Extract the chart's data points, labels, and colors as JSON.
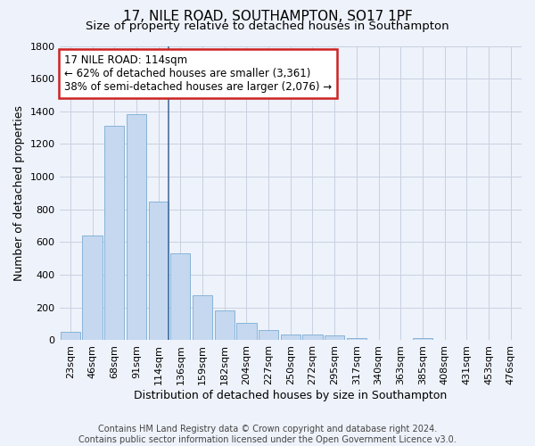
{
  "title_line1": "17, NILE ROAD, SOUTHAMPTON, SO17 1PF",
  "title_line2": "Size of property relative to detached houses in Southampton",
  "xlabel": "Distribution of detached houses by size in Southampton",
  "ylabel": "Number of detached properties",
  "footer_line1": "Contains HM Land Registry data © Crown copyright and database right 2024.",
  "footer_line2": "Contains public sector information licensed under the Open Government Licence v3.0.",
  "annotation_line1": "17 NILE ROAD: 114sqm",
  "annotation_line2": "← 62% of detached houses are smaller (3,361)",
  "annotation_line3": "38% of semi-detached houses are larger (2,076) →",
  "bar_categories": [
    "23sqm",
    "46sqm",
    "68sqm",
    "91sqm",
    "114sqm",
    "136sqm",
    "159sqm",
    "182sqm",
    "204sqm",
    "227sqm",
    "250sqm",
    "272sqm",
    "295sqm",
    "317sqm",
    "340sqm",
    "363sqm",
    "385sqm",
    "408sqm",
    "431sqm",
    "453sqm",
    "476sqm"
  ],
  "bar_values": [
    50,
    640,
    1310,
    1380,
    850,
    530,
    275,
    185,
    105,
    65,
    35,
    35,
    28,
    15,
    0,
    0,
    15,
    0,
    0,
    0,
    0
  ],
  "bar_color": "#c5d8f0",
  "bar_edge_color": "#7aadd4",
  "highlight_index": 4,
  "highlight_line_color": "#4a6fa0",
  "ylim": [
    0,
    1800
  ],
  "yticks": [
    0,
    200,
    400,
    600,
    800,
    1000,
    1200,
    1400,
    1600,
    1800
  ],
  "background_color": "#eef2fa",
  "grid_color": "#c8d0e0",
  "annotation_box_facecolor": "#ffffff",
  "annotation_box_edgecolor": "#cc2222",
  "title_fontsize": 11,
  "subtitle_fontsize": 9.5,
  "axis_label_fontsize": 9,
  "tick_fontsize": 8,
  "footer_fontsize": 7,
  "annotation_fontsize": 8.5
}
